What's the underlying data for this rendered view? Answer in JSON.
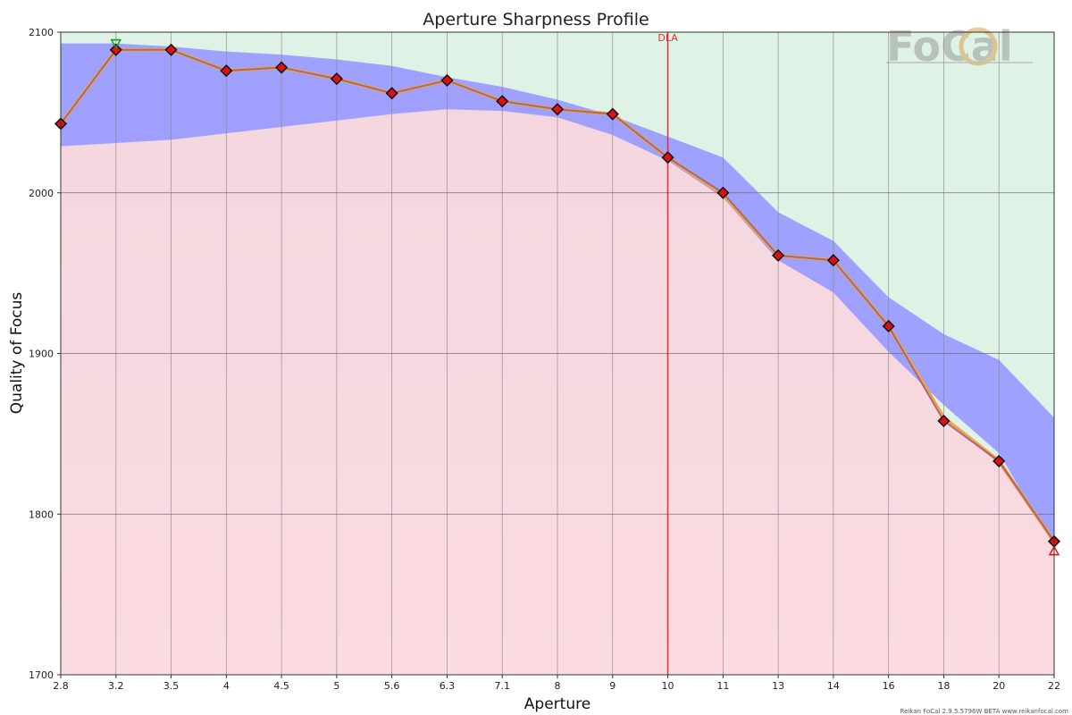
{
  "chart_data": {
    "type": "line",
    "title": "Aperture Sharpness Profile",
    "xlabel": "Aperture",
    "ylabel": "Quality of Focus",
    "categories": [
      "2.8",
      "3.2",
      "3.5",
      "4",
      "4.5",
      "5",
      "5.6",
      "6.3",
      "7.1",
      "8",
      "9",
      "10",
      "11",
      "13",
      "14",
      "16",
      "18",
      "20",
      "22"
    ],
    "ylim": [
      1700,
      2100
    ],
    "yticks": [
      1700,
      1800,
      1900,
      2000,
      2100
    ],
    "grid": true,
    "series": [
      {
        "values": [
          2043,
          2089,
          2089,
          2076,
          2078,
          2071,
          2062,
          2070,
          2057,
          2052,
          2049,
          2022,
          2000,
          1961,
          1958,
          1917,
          1858,
          1833,
          1783
        ]
      }
    ],
    "fitted_curve": [
      2043,
      2089,
      2089,
      2076,
      2078,
      2071,
      2062,
      2070,
      2057,
      2052,
      2049,
      2022,
      1999,
      1961,
      1958,
      1917,
      1860,
      1833,
      1783
    ],
    "band_upper": [
      2093,
      2093,
      2091,
      2088,
      2086,
      2083,
      2079,
      2072,
      2066,
      2058,
      2048,
      2035,
      2022,
      1988,
      1970,
      1935,
      1912,
      1896,
      1860
    ],
    "band_lower": [
      2029,
      2031,
      2033,
      2037,
      2041,
      2045,
      2049,
      2052,
      2051,
      2047,
      2036,
      2020,
      1997,
      1958,
      1938,
      1901,
      1868,
      1838,
      1780
    ],
    "markers": [
      {
        "type": "max",
        "category": "3.2",
        "value": 2093,
        "color": "#1a9a1a"
      },
      {
        "type": "min",
        "category": "22",
        "value": 1777,
        "color": "#e02020"
      }
    ],
    "annotations": [
      {
        "label": "DLA",
        "category": "10",
        "color": "#e03030"
      }
    ],
    "colors": {
      "background_top": "#dff2e6",
      "background_bottom": "#f8d9de",
      "band": "#9a9cff",
      "line": "#f2a14a",
      "marker_fill": "#e01010",
      "grid": "#888888"
    }
  },
  "logo": {
    "text": "FoCal"
  },
  "footer": "Reikan FoCal 2.9.5.5796W BETA  www.reikanfocal.com"
}
